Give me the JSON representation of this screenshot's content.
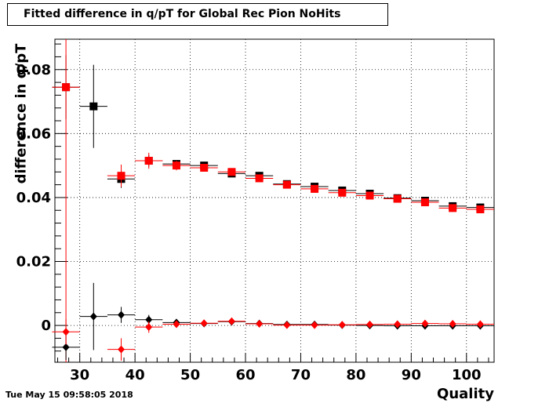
{
  "title": "Fitted difference in q/pT for Global Rec Pion NoHits",
  "timestamp": "Tue May 15 09:58:05 2018",
  "chart_data": {
    "type": "scatter",
    "title": "Fitted difference in q/pT for Global Rec Pion NoHits",
    "xlabel": "Quality",
    "ylabel": "difference in q/pT",
    "xlim": [
      25.5,
      105
    ],
    "ylim": [
      -0.0115,
      0.0895
    ],
    "grid": true,
    "x_ticks": [
      30,
      40,
      50,
      60,
      70,
      80,
      90,
      100
    ],
    "y_ticks": [
      0,
      0.02,
      0.04,
      0.06,
      0.08
    ],
    "x_tick_labels": [
      "30",
      "40",
      "50",
      "60",
      "70",
      "80",
      "90",
      "100"
    ],
    "y_tick_labels": [
      "0",
      "0.02",
      "0.04",
      "0.06",
      "0.08"
    ],
    "series": [
      {
        "marker": "square",
        "color": "#000000",
        "x": [
          27.5,
          32.5,
          37.5,
          42.5,
          47.5,
          52.5,
          57.5,
          62.5,
          67.5,
          72.5,
          77.5,
          82.5,
          87.5,
          92.5,
          97.5,
          102.5
        ],
        "y": [
          0.0745,
          0.0685,
          0.0458,
          0.0515,
          0.0505,
          0.05,
          0.0475,
          0.0468,
          0.0442,
          0.0434,
          0.0422,
          0.0412,
          0.0398,
          0.039,
          0.0373,
          0.0369
        ],
        "yerr": [
          0.01,
          0.013,
          0.0028,
          0.0018,
          0.0012,
          0.001,
          0.0008,
          0.0007,
          0.0006,
          0.0006,
          0.0005,
          0.0005,
          0.0005,
          0.0005,
          0.0005,
          0.0005
        ]
      },
      {
        "marker": "square",
        "color": "#ff0000",
        "x": [
          27.5,
          32.5,
          37.5,
          42.5,
          47.5,
          52.5,
          57.5,
          62.5,
          67.5,
          72.5,
          77.5,
          82.5,
          87.5,
          92.5,
          97.5,
          102.5
        ],
        "y": [
          0.0745,
          null,
          0.0468,
          0.0515,
          0.05,
          0.0493,
          0.048,
          0.046,
          0.044,
          0.0427,
          0.0415,
          0.0406,
          0.0396,
          0.0385,
          0.0367,
          0.0363
        ],
        "yerr": [
          0.09,
          0,
          0.0035,
          0.0025,
          0.0015,
          0.0012,
          0.001,
          0.0008,
          0.0007,
          0.0006,
          0.0006,
          0.0005,
          0.0005,
          0.0005,
          0.0005,
          0.0005
        ]
      },
      {
        "marker": "diamond",
        "color": "#000000",
        "x": [
          27.5,
          32.5,
          37.5,
          42.5,
          47.5,
          52.5,
          57.5,
          62.5,
          67.5,
          72.5,
          77.5,
          82.5,
          87.5,
          92.5,
          97.5,
          102.5
        ],
        "y": [
          -0.0068,
          0.0028,
          0.0033,
          0.0018,
          0.0009,
          0.0006,
          0.0012,
          0.0006,
          0.0003,
          0.0003,
          0.0001,
          0.0,
          -0.0001,
          -0.0001,
          -0.0001,
          -0.0001
        ],
        "yerr": [
          0.004,
          0.0105,
          0.0025,
          0.0015,
          0.001,
          0.0008,
          0.0006,
          0.0005,
          0.0004,
          0.0004,
          0.0003,
          0.0003,
          0.0003,
          0.0003,
          0.0003,
          0.0003
        ]
      },
      {
        "marker": "diamond",
        "color": "#ff0000",
        "x": [
          27.5,
          32.5,
          37.5,
          42.5,
          47.5,
          52.5,
          57.5,
          62.5,
          67.5,
          72.5,
          77.5,
          82.5,
          87.5,
          92.5,
          97.5,
          102.5
        ],
        "y": [
          -0.002,
          null,
          -0.0075,
          -0.0005,
          0.0004,
          0.0007,
          0.0013,
          0.0005,
          0.0001,
          0.0001,
          0.0002,
          0.0003,
          0.0004,
          0.0006,
          0.0005,
          0.0004
        ],
        "yerr": [
          0.004,
          0,
          0.0035,
          0.0018,
          0.001,
          0.0008,
          0.0006,
          0.0005,
          0.0004,
          0.0004,
          0.0003,
          0.0003,
          0.0003,
          0.0003,
          0.0003,
          0.0003
        ]
      }
    ]
  }
}
